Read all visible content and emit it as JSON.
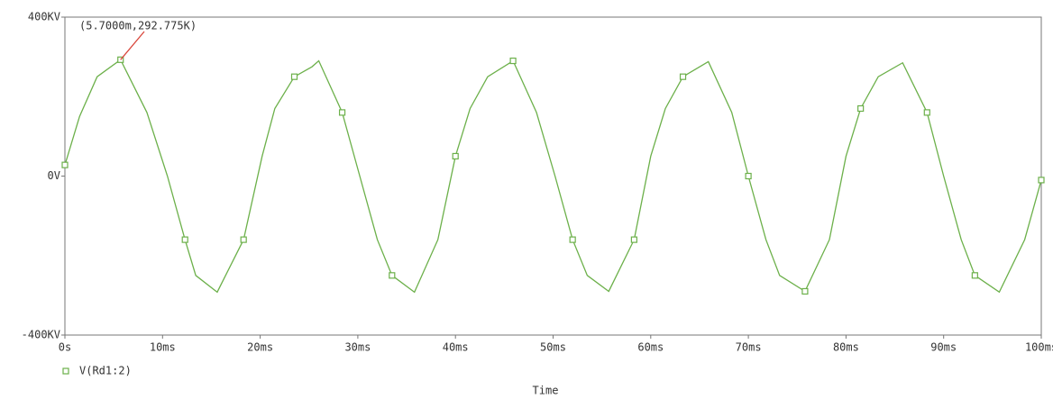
{
  "chart_data": {
    "type": "line",
    "x_label": "Time",
    "annotation": "(5.7000m,292.775K)",
    "x": [
      0,
      1.5,
      3.3,
      5.7,
      8.4,
      10.5,
      12.3,
      13.4,
      15.6,
      18.3,
      20.2,
      21.5,
      23.5,
      25.3,
      26,
      28.4,
      30.2,
      32,
      33.5,
      35.8,
      38.2,
      40,
      41.5,
      43.3,
      45.9,
      48.3,
      50.2,
      52,
      53.5,
      55.7,
      58.3,
      60,
      61.5,
      63.3,
      65.9,
      68.3,
      70,
      71.8,
      73.2,
      75.8,
      78.3,
      80,
      81.5,
      83.3,
      85.8,
      88.3,
      90,
      91.8,
      93.2,
      95.7,
      98.3,
      100
    ],
    "series": [
      {
        "name": "V(Rd1:2)",
        "color": "#6cb04a",
        "values": [
          28,
          150,
          250,
          292.775,
          160,
          0,
          -160,
          -250,
          -292,
          -160,
          50,
          170,
          250,
          275,
          290,
          160,
          0,
          -160,
          -250,
          -292,
          -160,
          50,
          170,
          250,
          290,
          160,
          0,
          -160,
          -250,
          -290,
          -160,
          50,
          170,
          250,
          288,
          160,
          0,
          -160,
          -250,
          -290,
          -160,
          50,
          170,
          250,
          285,
          160,
          0,
          -160,
          -250,
          -292,
          -160,
          -10
        ]
      }
    ],
    "xlim": [
      0,
      100
    ],
    "xticks": [
      {
        "value": 0,
        "label": "0s"
      },
      {
        "value": 10,
        "label": "10ms"
      },
      {
        "value": 20,
        "label": "20ms"
      },
      {
        "value": 30,
        "label": "30ms"
      },
      {
        "value": 40,
        "label": "40ms"
      },
      {
        "value": 50,
        "label": "50ms"
      },
      {
        "value": 60,
        "label": "60ms"
      },
      {
        "value": 70,
        "label": "70ms"
      },
      {
        "value": 80,
        "label": "80ms"
      },
      {
        "value": 90,
        "label": "90ms"
      },
      {
        "value": 100,
        "label": "100ms"
      }
    ],
    "ylim": [
      -400,
      400
    ],
    "yticks": [
      {
        "value": -400,
        "label": "-400KV"
      },
      {
        "value": 0,
        "label": "0V"
      },
      {
        "value": 400,
        "label": "400KV"
      }
    ],
    "annotation_color": "#d9463b"
  }
}
